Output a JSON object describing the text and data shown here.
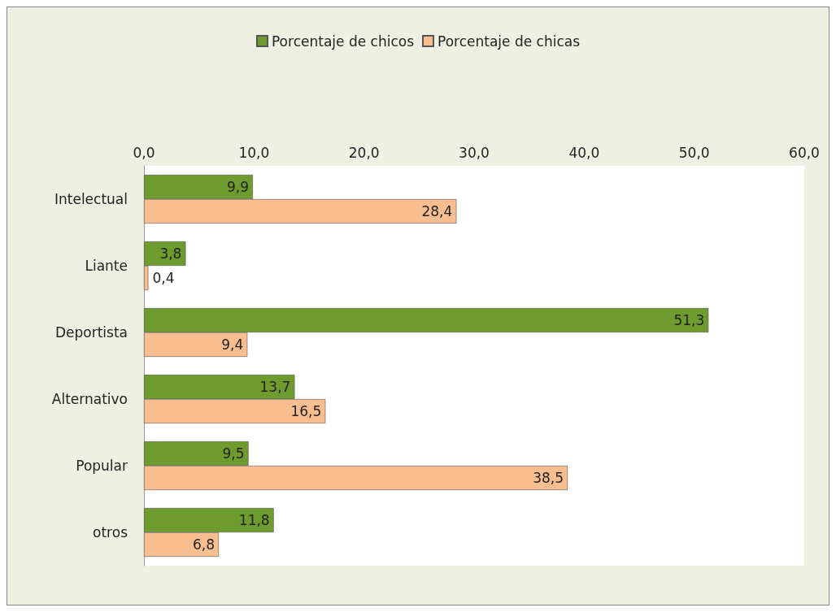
{
  "chart_data": {
    "type": "bar",
    "orientation": "horizontal",
    "categories": [
      "Intelectual",
      "Liante",
      "Deportista",
      "Alternativo",
      "Popular",
      "otros"
    ],
    "series": [
      {
        "name": "Porcentaje de chicos",
        "color": "#6e9b2e",
        "values": [
          9.9,
          3.8,
          51.3,
          13.7,
          9.5,
          11.8
        ],
        "value_labels": [
          "9,9",
          "3,8",
          "51,3",
          "13,7",
          "9,5",
          "11,8"
        ]
      },
      {
        "name": "Porcentaje de chicas",
        "color": "#f9be8f",
        "values": [
          28.4,
          0.4,
          9.4,
          16.5,
          38.5,
          6.8
        ],
        "value_labels": [
          "28,4",
          "0,4",
          "9,4",
          "16,5",
          "38,5",
          "6,8"
        ]
      }
    ],
    "xlim": [
      0,
      60
    ],
    "xticks": [
      {
        "value": 0,
        "label": "0,0"
      },
      {
        "value": 10,
        "label": "10,0"
      },
      {
        "value": 20,
        "label": "20,0"
      },
      {
        "value": 30,
        "label": "30,0"
      },
      {
        "value": 40,
        "label": "40,0"
      },
      {
        "value": 50,
        "label": "50,0"
      },
      {
        "value": 60,
        "label": "60,0"
      }
    ],
    "grid": false,
    "legend": "top"
  }
}
